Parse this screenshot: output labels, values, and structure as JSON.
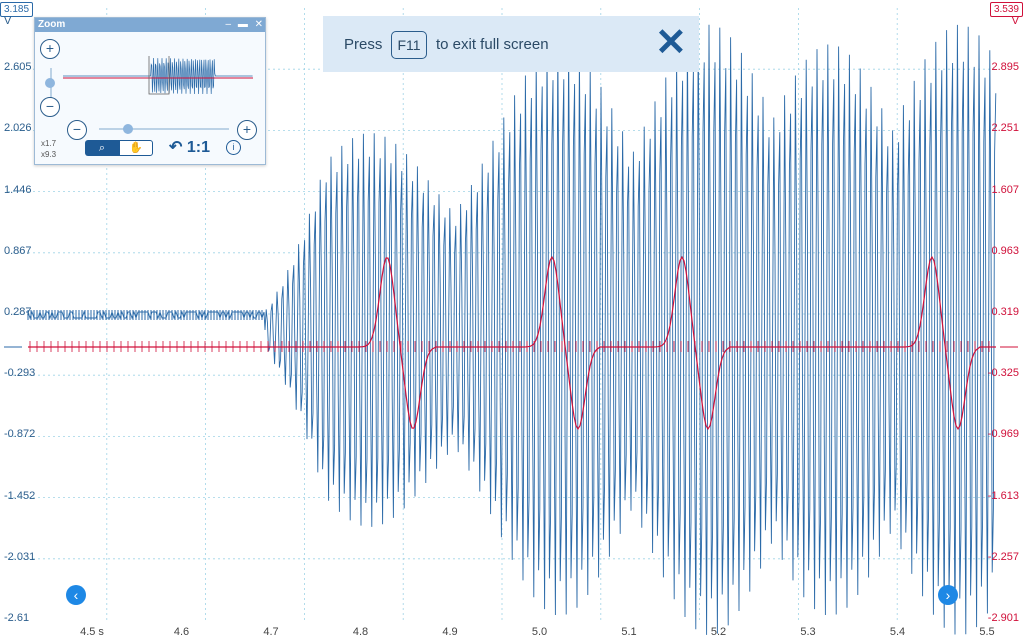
{
  "channelA": {
    "range_top": "3.185",
    "unit": "V",
    "labels": [
      "2.605",
      "2.026",
      "1.446",
      "0.867",
      "0.287",
      "-0.293",
      "-0.872",
      "-1.452",
      "-2.031",
      "-2.61"
    ],
    "color": "#2b6aa8"
  },
  "channelB": {
    "range_top": "3.539",
    "unit": "V",
    "labels": [
      "2.895",
      "2.251",
      "1.607",
      "0.963",
      "0.319",
      "-0.325",
      "-0.969",
      "-1.613",
      "-2.257",
      "-2.901"
    ],
    "color": "#d0103a"
  },
  "time_axis": {
    "labels": [
      "4.5 s",
      "4.6",
      "4.7",
      "4.8",
      "4.9",
      "5.0",
      "5.1",
      "5.2",
      "5.3",
      "5.4",
      "5.5"
    ]
  },
  "zoom_window": {
    "title": "Zoom",
    "zoom_x": "x1.7",
    "zoom_y": "x9.3",
    "reset_label": "1:1",
    "controls": {
      "minimize": "–",
      "maximize": "▬",
      "close": "✕"
    }
  },
  "fullscreen_banner": {
    "press": "Press",
    "key": "F11",
    "rest": "to exit full screen"
  },
  "icons": {
    "close": "close-icon",
    "nav_left": "chevron-left-icon",
    "nav_right": "chevron-right-icon",
    "zoom_tool": "magnifier-icon",
    "pan_tool": "hand-icon",
    "undo": "undo-icon",
    "info": "info-icon"
  }
}
